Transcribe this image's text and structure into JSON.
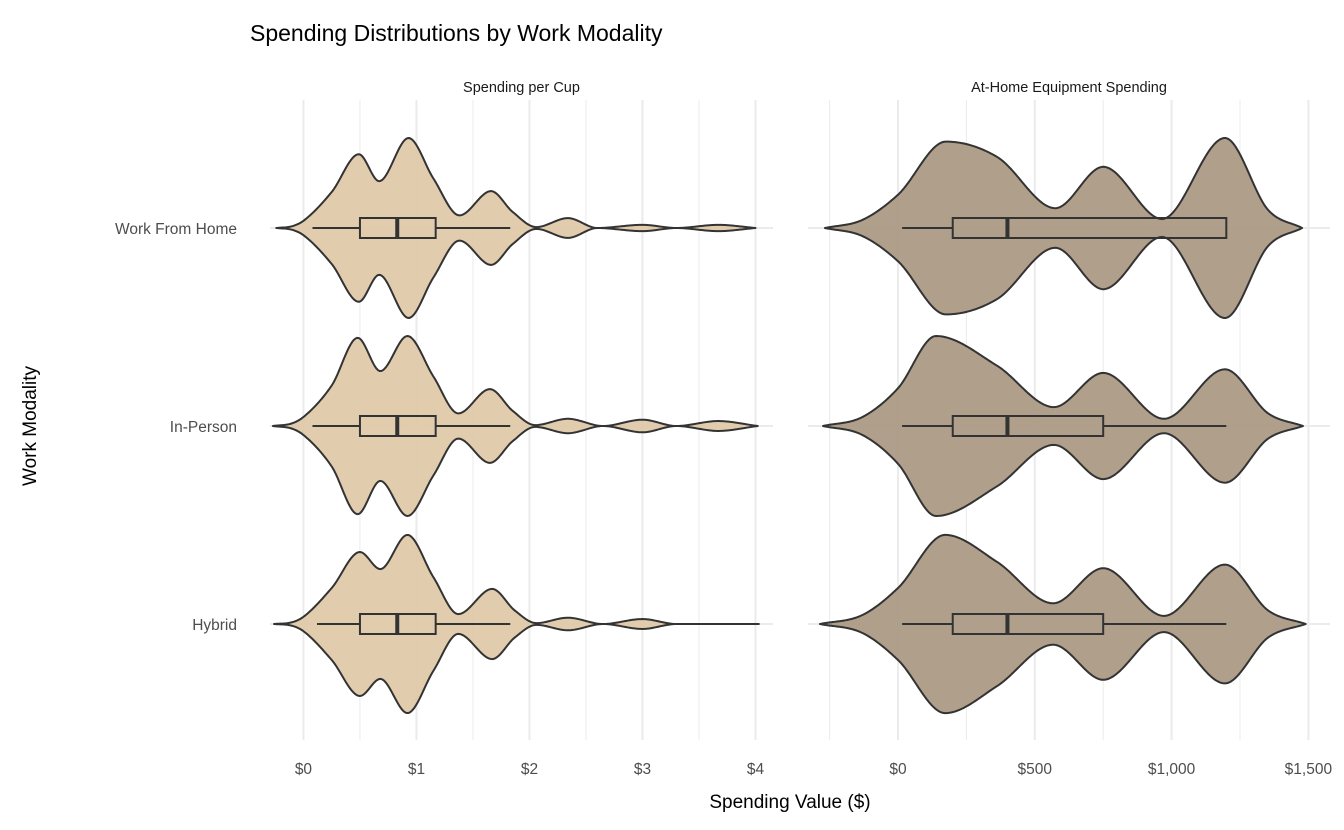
{
  "chart_data": {
    "type": "violin",
    "title": "Spending Distributions by Work Modality",
    "xlabel": "Spending Value ($)",
    "ylabel": "Work Modality",
    "categories": [
      "Work From Home",
      "In-Person",
      "Hybrid"
    ],
    "grid": true,
    "panels": [
      {
        "strip": "Spending per Cup",
        "fill": "#dfc9a9",
        "xlim": [
          -0.296,
          4.155
        ],
        "major_ticks": [
          0,
          1,
          2,
          3,
          4
        ],
        "minor_ticks": [
          0.5,
          1.5,
          2.5,
          3.5
        ],
        "tick_labels": [
          "$0",
          "$1",
          "$2",
          "$3",
          "$4"
        ],
        "series": [
          {
            "name": "Work From Home",
            "box": {
              "whisker_low": 0.08,
              "q1": 0.5,
              "median": 0.83,
              "q3": 1.17,
              "whisker_high": 1.83
            },
            "density": [
              [
                -0.24,
                0
              ],
              [
                -0.1,
                0.02
              ],
              [
                0,
                0.08
              ],
              [
                0.25,
                0.4
              ],
              [
                0.49,
                0.82
              ],
              [
                0.67,
                0.52
              ],
              [
                0.93,
                1.0
              ],
              [
                1.15,
                0.55
              ],
              [
                1.38,
                0.14
              ],
              [
                1.66,
                0.41
              ],
              [
                1.85,
                0.18
              ],
              [
                2.06,
                0.01
              ],
              [
                2.34,
                0.11
              ],
              [
                2.6,
                0
              ],
              [
                3.0,
                0.035
              ],
              [
                3.3,
                0
              ],
              [
                3.67,
                0.035
              ],
              [
                4.0,
                0
              ]
            ]
          },
          {
            "name": "In-Person",
            "box": {
              "whisker_low": 0.08,
              "q1": 0.5,
              "median": 0.83,
              "q3": 1.17,
              "whisker_high": 1.83
            },
            "density": [
              [
                -0.27,
                0
              ],
              [
                -0.1,
                0.03
              ],
              [
                0,
                0.1
              ],
              [
                0.25,
                0.45
              ],
              [
                0.48,
                0.98
              ],
              [
                0.68,
                0.61
              ],
              [
                0.92,
                1.0
              ],
              [
                1.15,
                0.55
              ],
              [
                1.37,
                0.14
              ],
              [
                1.65,
                0.41
              ],
              [
                1.85,
                0.17
              ],
              [
                2.05,
                0.01
              ],
              [
                2.34,
                0.08
              ],
              [
                2.65,
                0
              ],
              [
                3.0,
                0.07
              ],
              [
                3.3,
                0
              ],
              [
                3.67,
                0.055
              ],
              [
                4.02,
                0
              ]
            ]
          },
          {
            "name": "Hybrid",
            "box": {
              "whisker_low": 0.12,
              "q1": 0.5,
              "median": 0.83,
              "q3": 1.17,
              "whisker_high": 1.83
            },
            "density": [
              [
                -0.26,
                0
              ],
              [
                -0.1,
                0.02
              ],
              [
                0,
                0.08
              ],
              [
                0.25,
                0.4
              ],
              [
                0.5,
                0.8
              ],
              [
                0.68,
                0.61
              ],
              [
                0.92,
                0.99
              ],
              [
                1.15,
                0.52
              ],
              [
                1.37,
                0.11
              ],
              [
                1.67,
                0.39
              ],
              [
                1.87,
                0.15
              ],
              [
                2.06,
                0.01
              ],
              [
                2.34,
                0.07
              ],
              [
                2.65,
                0
              ],
              [
                3.0,
                0.055
              ],
              [
                3.3,
                0
              ],
              [
                4.03,
                0
              ]
            ]
          }
        ]
      },
      {
        "strip": "At-Home Equipment Spending",
        "fill": "#ac9b85",
        "xlim": [
          -329,
          1579
        ],
        "major_ticks": [
          0,
          500,
          1000,
          1500
        ],
        "minor_ticks": [
          -250,
          250,
          750,
          1250
        ],
        "tick_labels": [
          "$0",
          "$500",
          "$1,000",
          "$1,500"
        ],
        "series": [
          {
            "name": "Work From Home",
            "box": {
              "whisker_low": 15,
              "q1": 200,
              "median": 400,
              "q3": 1200,
              "whisker_high": 1200
            },
            "density": [
              [
                -267,
                0
              ],
              [
                -130,
                0.09
              ],
              [
                0,
                0.37
              ],
              [
                175,
                0.96
              ],
              [
                362,
                0.79
              ],
              [
                575,
                0.22
              ],
              [
                750,
                0.68
              ],
              [
                965,
                0.1
              ],
              [
                1195,
                1.0
              ],
              [
                1353,
                0.2
              ],
              [
                1477,
                0
              ]
            ]
          },
          {
            "name": "In-Person",
            "box": {
              "whisker_low": 15,
              "q1": 200,
              "median": 400,
              "q3": 750,
              "whisker_high": 1200
            },
            "density": [
              [
                -274,
                0
              ],
              [
                -130,
                0.1
              ],
              [
                0,
                0.42
              ],
              [
                139,
                1.0
              ],
              [
                362,
                0.67
              ],
              [
                570,
                0.21
              ],
              [
                750,
                0.59
              ],
              [
                972,
                0.08
              ],
              [
                1195,
                0.63
              ],
              [
                1353,
                0.14
              ],
              [
                1480,
                0
              ]
            ]
          },
          {
            "name": "Hybrid",
            "box": {
              "whisker_low": 15,
              "q1": 200,
              "median": 400,
              "q3": 750,
              "whisker_high": 1200
            },
            "density": [
              [
                -285,
                0
              ],
              [
                -130,
                0.1
              ],
              [
                0,
                0.4
              ],
              [
                172,
                0.99
              ],
              [
                362,
                0.69
              ],
              [
                567,
                0.23
              ],
              [
                750,
                0.62
              ],
              [
                972,
                0.09
              ],
              [
                1195,
                0.66
              ],
              [
                1353,
                0.15
              ],
              [
                1490,
                0
              ]
            ]
          }
        ]
      }
    ]
  }
}
